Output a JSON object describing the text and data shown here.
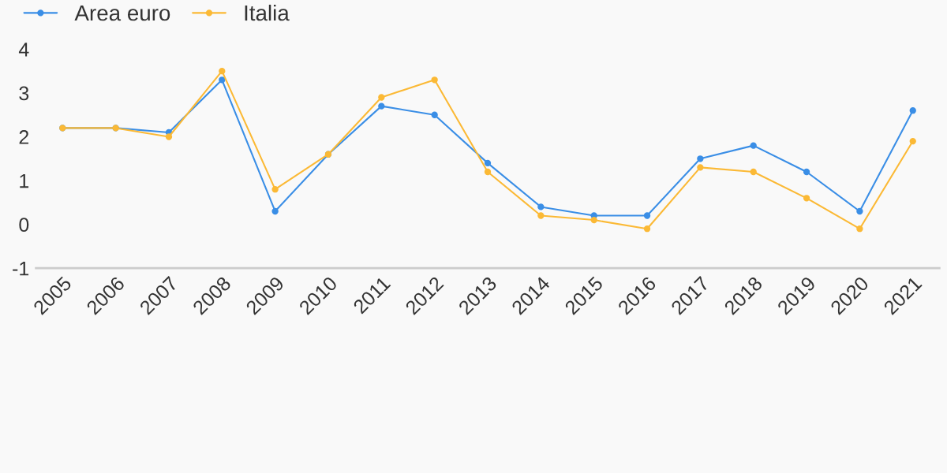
{
  "chart_data": {
    "type": "line",
    "categories": [
      "2005",
      "2006",
      "2007",
      "2008",
      "2009",
      "2010",
      "2011",
      "2012",
      "2013",
      "2014",
      "2015",
      "2016",
      "2017",
      "2018",
      "2019",
      "2020",
      "2021"
    ],
    "series": [
      {
        "name": "Area euro",
        "color": "#3a8ee6",
        "values": [
          2.2,
          2.2,
          2.1,
          3.3,
          0.3,
          1.6,
          2.7,
          2.5,
          1.4,
          0.4,
          0.2,
          0.2,
          1.5,
          1.8,
          1.2,
          0.3,
          2.6
        ]
      },
      {
        "name": "Italia",
        "color": "#fbb935",
        "values": [
          2.2,
          2.2,
          2.0,
          3.5,
          0.8,
          1.6,
          2.9,
          3.3,
          1.2,
          0.2,
          0.1,
          -0.1,
          1.3,
          1.2,
          0.6,
          -0.1,
          1.9
        ]
      }
    ],
    "ylim": [
      -1,
      4
    ],
    "yticks": [
      -1,
      0,
      1,
      2,
      3,
      4
    ],
    "grid": false,
    "legend": "top left",
    "marker": "circle",
    "line_style": "solid"
  }
}
